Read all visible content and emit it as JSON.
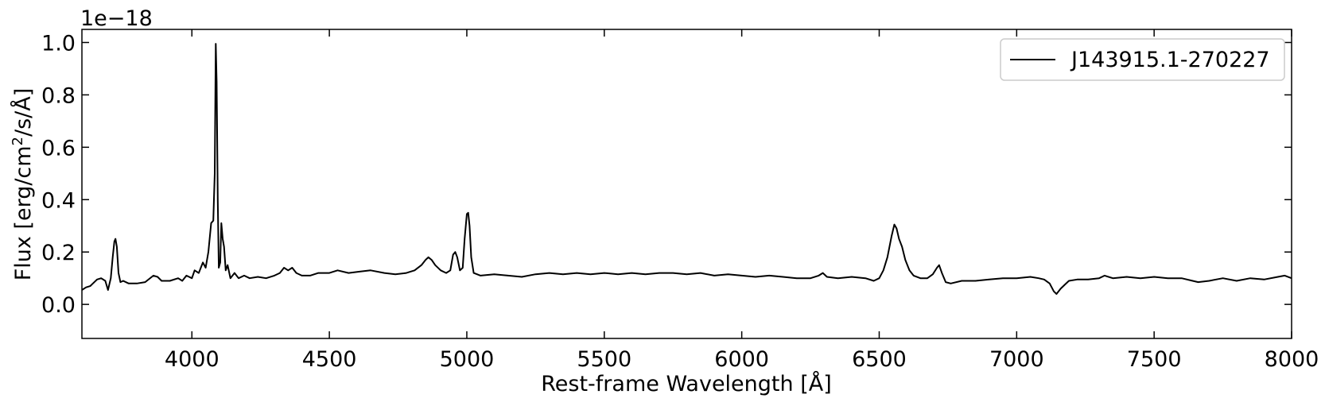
{
  "chart_data": {
    "type": "line",
    "xlabel": "Rest-frame Wavelength [Å]",
    "ylabel_prefix": "Flux [erg/cm",
    "ylabel_sup": "2",
    "ylabel_suffix": "/s/Å]",
    "y_offset_text": "1e−18",
    "xlim": [
      3600,
      8000
    ],
    "ylim": [
      -0.13,
      1.05
    ],
    "x_ticks": [
      4000,
      4500,
      5000,
      5500,
      6000,
      6500,
      7000,
      7500,
      8000
    ],
    "x_tick_labels": [
      "4000",
      "4500",
      "5000",
      "5500",
      "6000",
      "6500",
      "7000",
      "7500",
      "8000"
    ],
    "y_ticks": [
      0.0,
      0.2,
      0.4,
      0.6,
      0.8,
      1.0
    ],
    "y_tick_labels": [
      "0.0",
      "0.2",
      "0.4",
      "0.6",
      "0.8",
      "1.0"
    ],
    "grid": false,
    "legend_position": "top-right",
    "line_color": "#000000",
    "series": [
      {
        "name": "J143915.1-270227",
        "points": [
          [
            3600,
            0.055
          ],
          [
            3615,
            0.065
          ],
          [
            3630,
            0.07
          ],
          [
            3640,
            0.08
          ],
          [
            3655,
            0.095
          ],
          [
            3670,
            0.1
          ],
          [
            3685,
            0.09
          ],
          [
            3695,
            0.055
          ],
          [
            3705,
            0.1
          ],
          [
            3712,
            0.18
          ],
          [
            3718,
            0.24
          ],
          [
            3722,
            0.25
          ],
          [
            3727,
            0.22
          ],
          [
            3733,
            0.12
          ],
          [
            3740,
            0.085
          ],
          [
            3750,
            0.09
          ],
          [
            3770,
            0.08
          ],
          [
            3800,
            0.08
          ],
          [
            3830,
            0.085
          ],
          [
            3860,
            0.11
          ],
          [
            3875,
            0.105
          ],
          [
            3890,
            0.09
          ],
          [
            3920,
            0.09
          ],
          [
            3950,
            0.1
          ],
          [
            3965,
            0.09
          ],
          [
            3980,
            0.11
          ],
          [
            4000,
            0.1
          ],
          [
            4010,
            0.13
          ],
          [
            4025,
            0.12
          ],
          [
            4040,
            0.16
          ],
          [
            4050,
            0.14
          ],
          [
            4060,
            0.2
          ],
          [
            4070,
            0.31
          ],
          [
            4078,
            0.32
          ],
          [
            4083,
            0.5
          ],
          [
            4087,
            0.995
          ],
          [
            4090,
            0.85
          ],
          [
            4094,
            0.4
          ],
          [
            4098,
            0.14
          ],
          [
            4103,
            0.16
          ],
          [
            4107,
            0.31
          ],
          [
            4112,
            0.25
          ],
          [
            4117,
            0.22
          ],
          [
            4123,
            0.13
          ],
          [
            4130,
            0.15
          ],
          [
            4140,
            0.1
          ],
          [
            4155,
            0.12
          ],
          [
            4170,
            0.1
          ],
          [
            4190,
            0.11
          ],
          [
            4210,
            0.1
          ],
          [
            4240,
            0.105
          ],
          [
            4270,
            0.1
          ],
          [
            4300,
            0.11
          ],
          [
            4320,
            0.12
          ],
          [
            4335,
            0.14
          ],
          [
            4350,
            0.13
          ],
          [
            4365,
            0.14
          ],
          [
            4380,
            0.12
          ],
          [
            4400,
            0.11
          ],
          [
            4430,
            0.11
          ],
          [
            4460,
            0.12
          ],
          [
            4500,
            0.12
          ],
          [
            4530,
            0.13
          ],
          [
            4570,
            0.12
          ],
          [
            4610,
            0.125
          ],
          [
            4650,
            0.13
          ],
          [
            4700,
            0.12
          ],
          [
            4740,
            0.115
          ],
          [
            4780,
            0.12
          ],
          [
            4810,
            0.13
          ],
          [
            4835,
            0.15
          ],
          [
            4850,
            0.17
          ],
          [
            4860,
            0.18
          ],
          [
            4872,
            0.17
          ],
          [
            4885,
            0.15
          ],
          [
            4905,
            0.13
          ],
          [
            4925,
            0.12
          ],
          [
            4940,
            0.13
          ],
          [
            4950,
            0.19
          ],
          [
            4958,
            0.2
          ],
          [
            4965,
            0.18
          ],
          [
            4975,
            0.13
          ],
          [
            4985,
            0.14
          ],
          [
            4992,
            0.25
          ],
          [
            5000,
            0.345
          ],
          [
            5005,
            0.35
          ],
          [
            5010,
            0.3
          ],
          [
            5016,
            0.18
          ],
          [
            5025,
            0.12
          ],
          [
            5050,
            0.11
          ],
          [
            5100,
            0.115
          ],
          [
            5150,
            0.11
          ],
          [
            5200,
            0.105
          ],
          [
            5250,
            0.115
          ],
          [
            5300,
            0.12
          ],
          [
            5350,
            0.115
          ],
          [
            5400,
            0.12
          ],
          [
            5450,
            0.115
          ],
          [
            5500,
            0.12
          ],
          [
            5550,
            0.115
          ],
          [
            5600,
            0.12
          ],
          [
            5650,
            0.115
          ],
          [
            5700,
            0.12
          ],
          [
            5750,
            0.12
          ],
          [
            5800,
            0.115
          ],
          [
            5850,
            0.12
          ],
          [
            5900,
            0.11
          ],
          [
            5950,
            0.115
          ],
          [
            6000,
            0.11
          ],
          [
            6050,
            0.105
          ],
          [
            6100,
            0.11
          ],
          [
            6150,
            0.105
          ],
          [
            6200,
            0.1
          ],
          [
            6250,
            0.1
          ],
          [
            6280,
            0.11
          ],
          [
            6295,
            0.12
          ],
          [
            6310,
            0.105
          ],
          [
            6350,
            0.1
          ],
          [
            6400,
            0.105
          ],
          [
            6450,
            0.1
          ],
          [
            6480,
            0.09
          ],
          [
            6500,
            0.1
          ],
          [
            6515,
            0.13
          ],
          [
            6530,
            0.18
          ],
          [
            6545,
            0.26
          ],
          [
            6555,
            0.305
          ],
          [
            6563,
            0.29
          ],
          [
            6572,
            0.25
          ],
          [
            6583,
            0.22
          ],
          [
            6595,
            0.17
          ],
          [
            6610,
            0.13
          ],
          [
            6625,
            0.11
          ],
          [
            6650,
            0.1
          ],
          [
            6675,
            0.1
          ],
          [
            6695,
            0.115
          ],
          [
            6710,
            0.14
          ],
          [
            6718,
            0.15
          ],
          [
            6728,
            0.12
          ],
          [
            6742,
            0.085
          ],
          [
            6760,
            0.08
          ],
          [
            6800,
            0.09
          ],
          [
            6850,
            0.09
          ],
          [
            6900,
            0.095
          ],
          [
            6950,
            0.1
          ],
          [
            7000,
            0.1
          ],
          [
            7050,
            0.105
          ],
          [
            7080,
            0.1
          ],
          [
            7100,
            0.095
          ],
          [
            7120,
            0.08
          ],
          [
            7135,
            0.05
          ],
          [
            7145,
            0.04
          ],
          [
            7160,
            0.06
          ],
          [
            7175,
            0.075
          ],
          [
            7190,
            0.09
          ],
          [
            7220,
            0.095
          ],
          [
            7260,
            0.095
          ],
          [
            7300,
            0.1
          ],
          [
            7320,
            0.11
          ],
          [
            7350,
            0.1
          ],
          [
            7400,
            0.105
          ],
          [
            7450,
            0.1
          ],
          [
            7500,
            0.105
          ],
          [
            7550,
            0.1
          ],
          [
            7600,
            0.1
          ],
          [
            7640,
            0.09
          ],
          [
            7660,
            0.085
          ],
          [
            7700,
            0.09
          ],
          [
            7750,
            0.1
          ],
          [
            7800,
            0.09
          ],
          [
            7850,
            0.1
          ],
          [
            7900,
            0.095
          ],
          [
            7950,
            0.105
          ],
          [
            7975,
            0.11
          ],
          [
            8000,
            0.1
          ]
        ]
      }
    ]
  }
}
